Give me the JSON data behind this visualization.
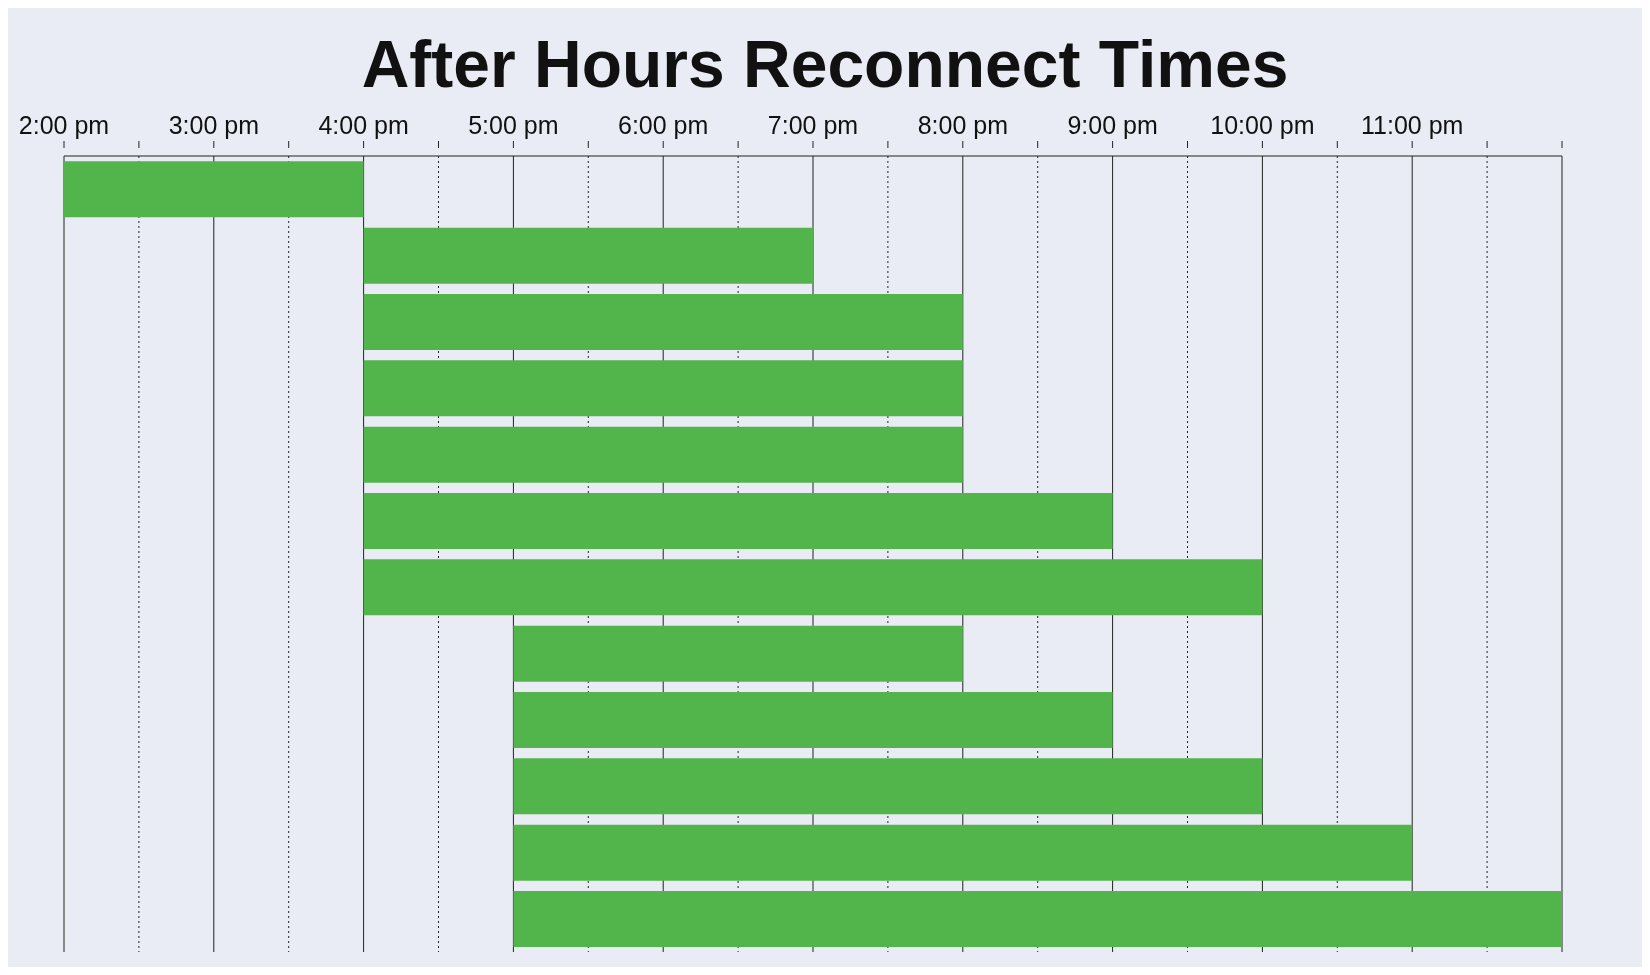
{
  "chart_data": {
    "type": "bar",
    "title": "After Hours Reconnect Times",
    "orientation": "horizontal",
    "categories": [
      null,
      null,
      null,
      null,
      null,
      null,
      null,
      null,
      null,
      null,
      null,
      null
    ],
    "series": [
      {
        "color": "#52b54b",
        "base": [
          14,
          16,
          16,
          16,
          16,
          16,
          16,
          17,
          17,
          17,
          17,
          17
        ],
        "values": [
          2,
          3,
          4,
          4,
          4,
          5,
          6,
          3,
          4,
          5,
          6,
          7
        ]
      }
    ],
    "xlim": [
      14,
      24
    ],
    "xticks": [
      {
        "value": 14,
        "label": "2:00 pm"
      },
      {
        "value": 14.5,
        "label": null
      },
      {
        "value": 15,
        "label": "3:00 pm"
      },
      {
        "value": 15.5,
        "label": null
      },
      {
        "value": 16,
        "label": "4:00 pm"
      },
      {
        "value": 16.5,
        "label": null
      },
      {
        "value": 17,
        "label": "5:00 pm"
      },
      {
        "value": 17.5,
        "label": null
      },
      {
        "value": 18,
        "label": "6:00 pm"
      },
      {
        "value": 18.5,
        "label": null
      },
      {
        "value": 19,
        "label": "7:00 pm"
      },
      {
        "value": 19.5,
        "label": null
      },
      {
        "value": 20,
        "label": "8:00 pm"
      },
      {
        "value": 20.5,
        "label": null
      },
      {
        "value": 21,
        "label": "9:00 pm"
      },
      {
        "value": 21.5,
        "label": null
      },
      {
        "value": 22,
        "label": "10:00 pm"
      },
      {
        "value": 22.5,
        "label": null
      },
      {
        "value": 23,
        "label": "11:00 pm"
      },
      {
        "value": 23.5,
        "label": null
      },
      {
        "value": 24,
        "label": null
      }
    ],
    "grid": "x",
    "legend": false
  }
}
